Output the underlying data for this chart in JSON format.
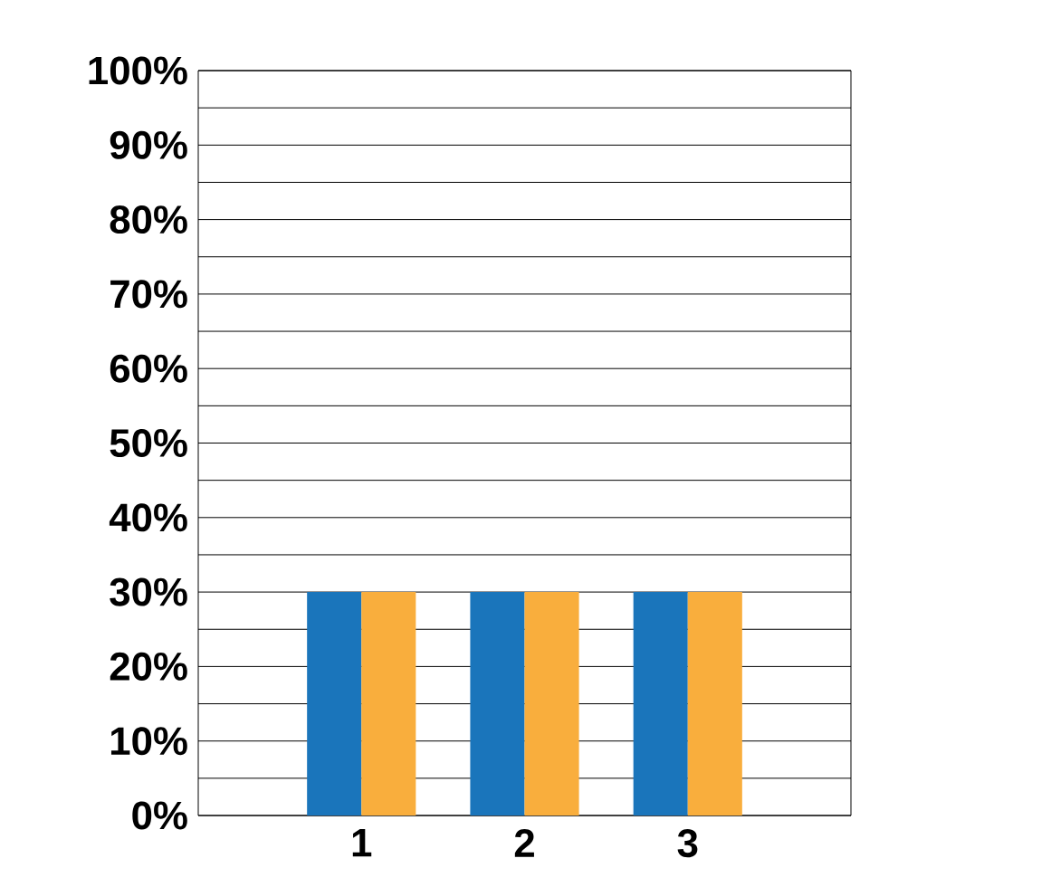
{
  "chart_data": {
    "type": "bar",
    "categories": [
      "1",
      "2",
      "3"
    ],
    "series": [
      {
        "color": "#1a75bb",
        "values": [
          30,
          30,
          30
        ]
      },
      {
        "color": "#f9ae3d",
        "values": [
          30,
          30,
          30
        ]
      }
    ],
    "ylim": [
      0,
      100
    ],
    "yticks": [
      {
        "value": 0,
        "label": "0%"
      },
      {
        "value": 5,
        "label": null
      },
      {
        "value": 10,
        "label": "10%"
      },
      {
        "value": 15,
        "label": null
      },
      {
        "value": 20,
        "label": "20%"
      },
      {
        "value": 25,
        "label": null
      },
      {
        "value": 30,
        "label": "30%"
      },
      {
        "value": 35,
        "label": null
      },
      {
        "value": 40,
        "label": "40%"
      },
      {
        "value": 45,
        "label": null
      },
      {
        "value": 50,
        "label": "50%"
      },
      {
        "value": 55,
        "label": null
      },
      {
        "value": 60,
        "label": "60%"
      },
      {
        "value": 65,
        "label": null
      },
      {
        "value": 70,
        "label": "70%"
      },
      {
        "value": 75,
        "label": null
      },
      {
        "value": 80,
        "label": "80%"
      },
      {
        "value": 85,
        "label": null
      },
      {
        "value": 90,
        "label": "90%"
      },
      {
        "value": 95,
        "label": null
      },
      {
        "value": 100,
        "label": "100%"
      }
    ],
    "grid": "y"
  }
}
